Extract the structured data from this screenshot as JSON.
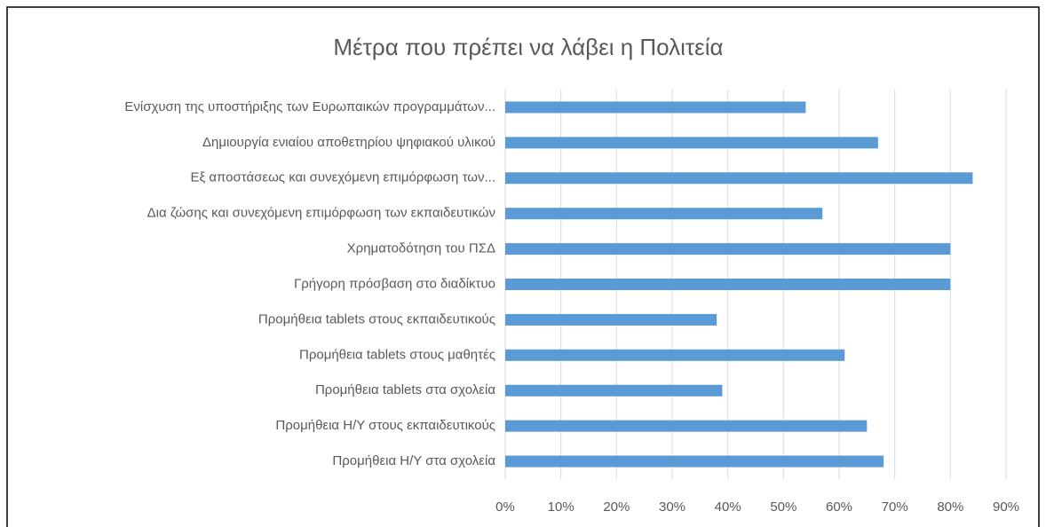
{
  "chart_data": {
    "type": "bar",
    "orientation": "horizontal",
    "title": "Μέτρα που πρέπει να λάβει η Πολιτεία",
    "categories": [
      "Ενίσχυση της υποστήριξης των Ευρωπαικών προγραμμάτων...",
      "Δημιουργία ενιαίου αποθετηρίου ψηφιακού υλικού",
      "Εξ αποστάσεως και συνεχόμενη επιμόρφωση των...",
      "Δια ζώσης και συνεχόμενη επιμόρφωση των εκπαιδευτικών",
      "Χρηματοδότηση του ΠΣΔ",
      "Γρήγορη πρόσβαση στο διαδίκτυο",
      "Προμήθεια tablets στους εκπαιδευτικούς",
      "Προμήθεια tablets στους μαθητές",
      "Προμήθεια tablets στα σχολεία",
      "Προμήθεια Η/Υ στους εκπαιδευτικούς",
      "Προμήθεια Η/Υ στα σχολεία"
    ],
    "values": [
      54,
      67,
      84,
      57,
      80,
      80,
      38,
      61,
      39,
      65,
      68
    ],
    "color": "#5b9bd5",
    "xlim": [
      0,
      90
    ],
    "xticks": [
      {
        "value": 0,
        "label": "0%"
      },
      {
        "value": 10,
        "label": "10%"
      },
      {
        "value": 20,
        "label": "20%"
      },
      {
        "value": 30,
        "label": "30%"
      },
      {
        "value": 40,
        "label": "40%"
      },
      {
        "value": 50,
        "label": "50%"
      },
      {
        "value": 60,
        "label": "60%"
      },
      {
        "value": 70,
        "label": "70%"
      },
      {
        "value": 80,
        "label": "80%"
      },
      {
        "value": 90,
        "label": "90%"
      }
    ],
    "grid": true
  }
}
